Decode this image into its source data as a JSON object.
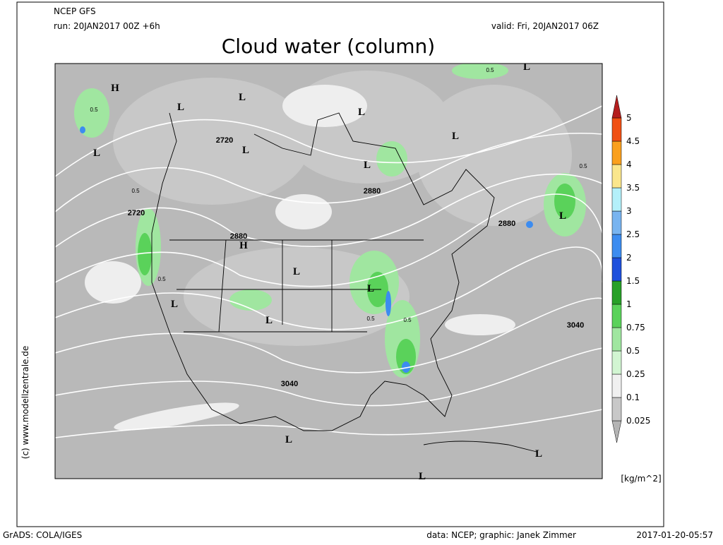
{
  "header": {
    "model": "NCEP GFS",
    "run": "run: 20JAN2017 00Z +6h",
    "valid": "valid: Fri, 20JAN2017 06Z",
    "title": "Cloud water (column)"
  },
  "map_labels": [
    "H",
    "L",
    "L",
    "L",
    "2720",
    "L",
    "2880",
    "L",
    "2720",
    "2880",
    "H",
    "L",
    "L",
    "L",
    "L",
    "3040",
    "3040",
    "2880",
    "L",
    "L",
    "L",
    "L",
    "L",
    "0.5",
    "0.5",
    "0.5",
    "0.5",
    "0.5",
    "0.5",
    "0.5",
    "L",
    "L"
  ],
  "colorbar": {
    "levels": [
      0.025,
      0.1,
      0.25,
      0.5,
      0.75,
      1,
      1.5,
      2,
      2.5,
      3,
      3.5,
      4,
      4.5,
      5
    ],
    "colors": [
      "#b4b4b4",
      "#c8c8c8",
      "#f0f0f0",
      "#d2f5d2",
      "#a0e6a0",
      "#5ad25a",
      "#28a028",
      "#1e50dc",
      "#3c8cf0",
      "#78b4f0",
      "#b4f0fa",
      "#fae68c",
      "#faa01e",
      "#f05014",
      "#b41e1e"
    ],
    "unit": "[kg/m^2]"
  },
  "copyright": "(c) www.modellzentrale.de",
  "footer": {
    "left": "GrADS: COLA/IGES",
    "center": "data: NCEP; graphic: Janek Zimmer",
    "right": "2017-01-20-05:57"
  }
}
